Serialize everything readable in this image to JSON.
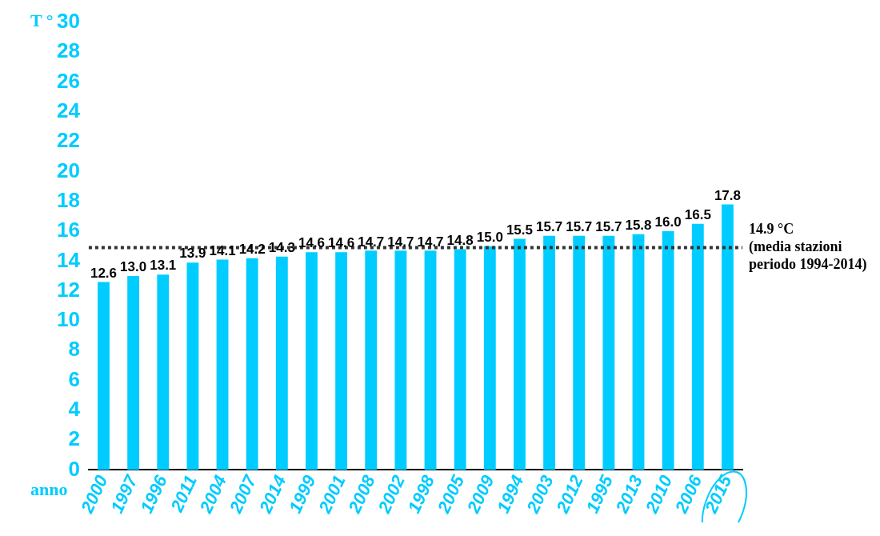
{
  "chart_data": {
    "type": "bar",
    "ylabel": "T °",
    "xlabel": "anno",
    "categories": [
      "2000",
      "1997",
      "1996",
      "2011",
      "2004",
      "2007",
      "2014",
      "1999",
      "2001",
      "2008",
      "2002",
      "1998",
      "2005",
      "2009",
      "1994",
      "2003",
      "2012",
      "1995",
      "2013",
      "2010",
      "2006",
      "2015"
    ],
    "values": [
      12.6,
      13.0,
      13.1,
      13.9,
      14.1,
      14.2,
      14.3,
      14.6,
      14.6,
      14.7,
      14.7,
      14.7,
      14.8,
      15.0,
      15.5,
      15.7,
      15.7,
      15.7,
      15.8,
      16.0,
      16.5,
      17.8
    ],
    "color": "#00ccff",
    "value_labels": [
      "12.6",
      "13.0",
      "13.1",
      "13.9",
      "14.1",
      "14.2",
      "14.3",
      "14.6",
      "14.6",
      "14.7",
      "14.7",
      "14.7",
      "14.8",
      "15.0",
      "15.5",
      "15.7",
      "15.7",
      "15.7",
      "15.8",
      "16.0",
      "16.5",
      "17.8"
    ],
    "ylim": [
      0,
      30
    ],
    "yticks": [
      0,
      2,
      4,
      6,
      8,
      10,
      12,
      14,
      16,
      18,
      20,
      22,
      24,
      26,
      28,
      30
    ],
    "grid": false,
    "legend": false,
    "ref_lines": [
      {
        "axis": "y",
        "value": 14.9,
        "label": "14.9 °C (media stazioni periodo 1994-2014)",
        "color": "#333333",
        "line_style": "dotted"
      }
    ]
  }
}
